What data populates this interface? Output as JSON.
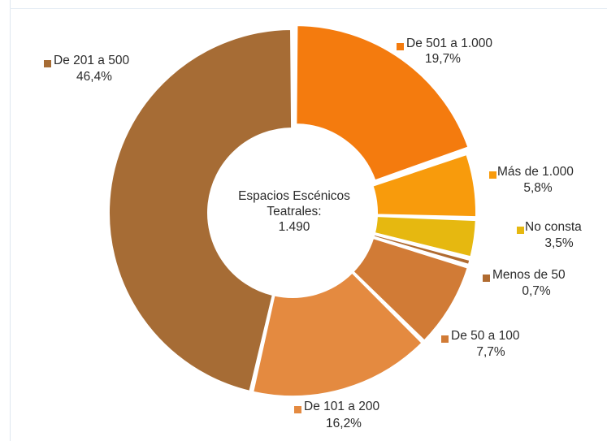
{
  "chart_data": {
    "type": "pie",
    "donut": true,
    "center_label": {
      "line1": "Espacios Escénicos",
      "line2": "Teatrales:",
      "line3": "1.490"
    },
    "slices": [
      {
        "label": "De 501 a 1.000",
        "value_text": "19,7%",
        "value": 19.7,
        "color": "#f47b0e"
      },
      {
        "label": "Más de 1.000",
        "value_text": "5,8%",
        "value": 5.8,
        "color": "#f89b0c"
      },
      {
        "label": "No consta",
        "value_text": "3,5%",
        "value": 3.5,
        "color": "#e6b810"
      },
      {
        "label": "Menos de 50",
        "value_text": "0,7%",
        "value": 0.7,
        "color": "#b06b30"
      },
      {
        "label": "De 50 a 100",
        "value_text": "7,7%",
        "value": 7.7,
        "color": "#d17b36"
      },
      {
        "label": "De 101 a 200",
        "value_text": "16,2%",
        "value": 16.2,
        "color": "#e48a40"
      },
      {
        "label": "De 201 a 500",
        "value_text": "46,4%",
        "value": 46.4,
        "color": "#a66c35"
      }
    ]
  }
}
